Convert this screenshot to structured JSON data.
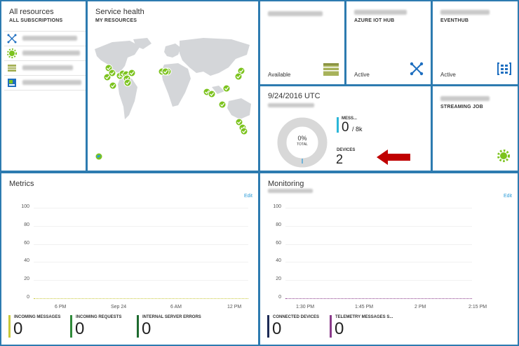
{
  "all_resources": {
    "title": "All resources",
    "subtitle": "ALL SUBSCRIPTIONS",
    "items": [
      {
        "icon": "iot-hub-icon"
      },
      {
        "icon": "stream-analytics-icon"
      },
      {
        "icon": "storage-icon"
      },
      {
        "icon": "web-app-icon"
      }
    ]
  },
  "service_health": {
    "title": "Service health",
    "subtitle": "MY RESOURCES"
  },
  "storage_tile": {
    "status": "Available"
  },
  "iothub_tile": {
    "subtitle": "AZURE IOT HUB",
    "status": "Active"
  },
  "eventhub_tile": {
    "subtitle": "EVENTHUB",
    "status": "Active"
  },
  "usage_tile": {
    "date": "9/24/2016 UTC",
    "donut_percent": "0%",
    "donut_label": "TOTAL",
    "messages_label": "MESS...",
    "messages_value": "0",
    "messages_max": "/ 8k",
    "devices_label": "DEVICES",
    "devices_value": "2"
  },
  "streaming_tile": {
    "subtitle": "STREAMING JOB"
  },
  "metrics": {
    "title": "Metrics",
    "edit_label": "Edit",
    "y_ticks": [
      "100",
      "80",
      "60",
      "40",
      "20",
      "0"
    ],
    "x_ticks": [
      "6 PM",
      "Sep 24",
      "6 AM",
      "12 PM"
    ],
    "legend": [
      {
        "label": "INCOMING MESSAGES",
        "value": "0",
        "color": "#c8c83a"
      },
      {
        "label": "INCOMING REQUESTS",
        "value": "0",
        "color": "#2f8a3a"
      },
      {
        "label": "INTERNAL SERVER ERRORS",
        "value": "0",
        "color": "#1d6a2f"
      }
    ]
  },
  "monitoring": {
    "title": "Monitoring",
    "edit_label": "Edit",
    "y_ticks": [
      "100",
      "80",
      "60",
      "40",
      "20",
      "0"
    ],
    "x_ticks": [
      "1:30 PM",
      "1:45 PM",
      "2 PM",
      "2:15 PM"
    ],
    "legend": [
      {
        "label": "CONNECTED DEVICES",
        "value": "0",
        "color": "#1c2a55"
      },
      {
        "label": "TELEMETRY MESSAGES S...",
        "value": "0",
        "color": "#8a3a8a"
      }
    ]
  },
  "colors": {
    "background": "#2d7bb0",
    "accent": "#2b9bd8",
    "healthy": "#7cc31e",
    "arrow": "#c00000"
  }
}
